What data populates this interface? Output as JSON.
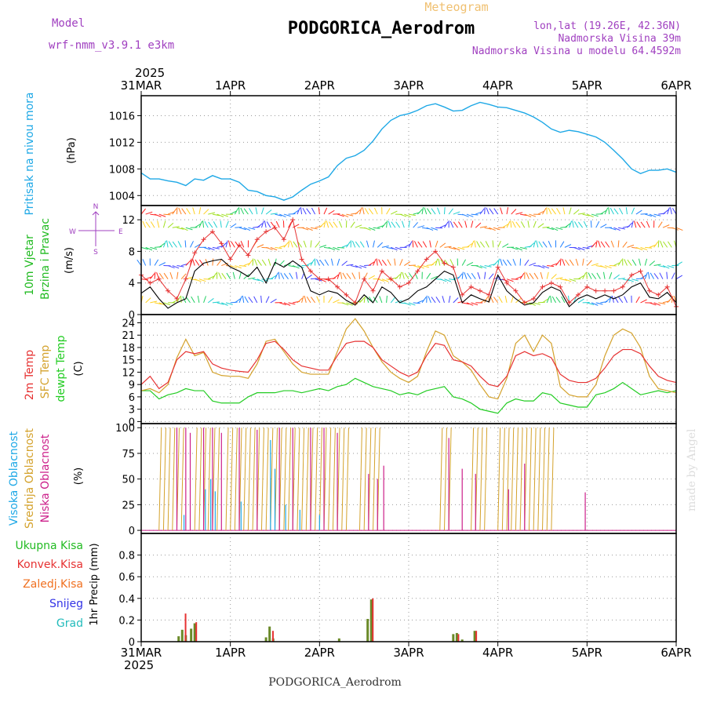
{
  "header": {
    "meteogram_label": "Meteogram",
    "station_title": "PODGORICA_Aerodrom",
    "model_label": "Model",
    "model_name": "wrf-nmm_v3.9.1 e3km",
    "lonlat": "lon,lat (19.26E, 42.36N)",
    "altitude": "Nadmorska Visina 39m",
    "model_altitude": "Nadmorska Visina u modelu 64.4592m",
    "footer_station": "PODGORICA_Aerodrom",
    "watermark": "made by Angel",
    "year_top": "2025",
    "year_bottom": "2025"
  },
  "time_axis": {
    "labels_top": [
      "31MAR",
      "1APR",
      "2APR",
      "3APR",
      "4APR",
      "5APR",
      "6APR"
    ],
    "labels_bottom": [
      "31MAR",
      "1APR",
      "2APR",
      "3APR",
      "4APR",
      "5APR",
      "6APR"
    ],
    "days": 6
  },
  "colors": {
    "pressure": "#1ea8e6",
    "wind_label": "#22bb22",
    "wind_gust": "#e63232",
    "temp_2m": "#e63232",
    "temp_sfc": "#d4a22c",
    "dewpoint": "#22cc22",
    "cloud_high": "#1ea8e6",
    "cloud_mid": "#d4a22c",
    "cloud_low": "#cc1f8a",
    "precip_total": "#22bb22",
    "precip_conv": "#e63232",
    "precip_frozen": "#f07020",
    "precip_snow": "#3232e6",
    "precip_grad": "#22bbbb",
    "purple": "#a040c0",
    "orange": "#f0c070"
  },
  "chart_data": [
    {
      "type": "line",
      "name": "pressure",
      "ylabel_main": "Pritisak na nivou mora",
      "ylabel_unit": "(hPa)",
      "ylim": [
        1002.5,
        1019
      ],
      "yticks": [
        1004,
        1008,
        1012,
        1016
      ],
      "x": [
        0,
        0.1,
        0.2,
        0.3,
        0.4,
        0.5,
        0.6,
        0.7,
        0.8,
        0.9,
        1.0,
        1.1,
        1.2,
        1.3,
        1.4,
        1.5,
        1.6,
        1.7,
        1.8,
        1.9,
        2.0,
        2.1,
        2.2,
        2.3,
        2.4,
        2.5,
        2.6,
        2.7,
        2.8,
        2.9,
        3.0,
        3.1,
        3.2,
        3.3,
        3.4,
        3.5,
        3.6,
        3.7,
        3.8,
        3.9,
        4.0,
        4.1,
        4.2,
        4.3,
        4.4,
        4.5,
        4.6,
        4.7,
        4.8,
        4.9,
        5.0,
        5.1,
        5.2,
        5.3,
        5.4,
        5.5,
        5.6,
        5.7,
        5.8,
        5.9,
        6.0
      ],
      "values": [
        1007.4,
        1006.5,
        1006.5,
        1006.2,
        1006.0,
        1005.5,
        1006.5,
        1006.3,
        1007.0,
        1006.5,
        1006.5,
        1006.0,
        1004.8,
        1004.6,
        1004.0,
        1003.8,
        1003.3,
        1003.8,
        1004.8,
        1005.7,
        1006.2,
        1006.8,
        1008.5,
        1009.6,
        1010.0,
        1010.8,
        1012.2,
        1014.0,
        1015.3,
        1016.0,
        1016.3,
        1016.8,
        1017.5,
        1017.8,
        1017.3,
        1016.7,
        1016.8,
        1017.5,
        1018.0,
        1017.7,
        1017.3,
        1017.2,
        1016.8,
        1016.4,
        1015.8,
        1015.0,
        1014.0,
        1013.5,
        1013.8,
        1013.6,
        1013.2,
        1012.8,
        1012.0,
        1010.8,
        1009.5,
        1008.0,
        1007.3,
        1007.8,
        1007.8,
        1008.0,
        1007.5
      ]
    },
    {
      "type": "line",
      "name": "wind",
      "ylabel_main": "10m Vjetar",
      "ylabel_sub": "Brzina i Pravac",
      "ylabel_unit": "(m/s)",
      "compass": {
        "n": "N",
        "s": "S",
        "e": "E",
        "w": "W"
      },
      "ylim": [
        0,
        13.8
      ],
      "yticks": [
        0,
        4,
        8,
        12
      ],
      "x": [
        0,
        0.1,
        0.2,
        0.3,
        0.4,
        0.5,
        0.6,
        0.7,
        0.8,
        0.9,
        1.0,
        1.1,
        1.2,
        1.3,
        1.4,
        1.5,
        1.6,
        1.7,
        1.8,
        1.9,
        2.0,
        2.1,
        2.2,
        2.3,
        2.4,
        2.5,
        2.6,
        2.7,
        2.8,
        2.9,
        3.0,
        3.1,
        3.2,
        3.3,
        3.4,
        3.5,
        3.6,
        3.7,
        3.8,
        3.9,
        4.0,
        4.1,
        4.2,
        4.3,
        4.4,
        4.5,
        4.6,
        4.7,
        4.8,
        4.9,
        5.0,
        5.1,
        5.2,
        5.3,
        5.4,
        5.5,
        5.6,
        5.7,
        5.8,
        5.9,
        6.0
      ],
      "speed": [
        2.7,
        3.5,
        2.0,
        0.8,
        1.5,
        2.0,
        5.5,
        6.5,
        6.8,
        7.0,
        6.0,
        5.5,
        4.8,
        6.0,
        4.0,
        6.6,
        6.0,
        6.8,
        6.0,
        3.0,
        2.5,
        3.0,
        2.7,
        1.8,
        1.2,
        2.5,
        1.5,
        3.5,
        2.8,
        1.5,
        2.0,
        3.0,
        3.5,
        4.5,
        5.5,
        5.0,
        1.5,
        2.5,
        2.0,
        1.6,
        5.0,
        3.0,
        2.0,
        1.2,
        1.5,
        2.8,
        3.5,
        3.0,
        1.0,
        2.0,
        2.5,
        2.0,
        2.5,
        2.0,
        2.5,
        3.5,
        4.0,
        2.2,
        2.0,
        2.8,
        1.5
      ],
      "gust": [
        5.0,
        4.0,
        4.5,
        3.0,
        2.0,
        4.5,
        7.8,
        9.5,
        10.5,
        9.0,
        7.0,
        8.8,
        7.5,
        9.5,
        10.5,
        11.0,
        9.5,
        12.0,
        7.0,
        5.5,
        4.5,
        4.5,
        3.5,
        2.5,
        1.5,
        4.5,
        3.0,
        5.5,
        4.5,
        3.5,
        4.0,
        5.5,
        7.0,
        8.0,
        6.5,
        6.0,
        2.5,
        3.5,
        3.0,
        2.5,
        6.0,
        4.0,
        3.0,
        1.5,
        2.0,
        3.5,
        4.0,
        3.5,
        1.5,
        2.5,
        3.5,
        3.0,
        3.0,
        3.0,
        3.5,
        5.0,
        5.5,
        3.0,
        2.5,
        3.5,
        1.0
      ]
    },
    {
      "type": "line",
      "name": "temperature",
      "ylabel_t2": "2m Temp",
      "ylabel_sfc": "SFC Temp",
      "ylabel_dew": "dewpt Temp",
      "ylabel_unit": "(C)",
      "ylim": [
        -0.5,
        26
      ],
      "yticks": [
        0,
        3,
        6,
        9,
        12,
        15,
        18,
        21,
        24
      ],
      "x": [
        0,
        0.1,
        0.2,
        0.3,
        0.4,
        0.5,
        0.6,
        0.7,
        0.8,
        0.9,
        1.0,
        1.1,
        1.2,
        1.3,
        1.4,
        1.5,
        1.6,
        1.7,
        1.8,
        1.9,
        2.0,
        2.1,
        2.2,
        2.3,
        2.4,
        2.5,
        2.6,
        2.7,
        2.8,
        2.9,
        3.0,
        3.1,
        3.2,
        3.3,
        3.4,
        3.5,
        3.6,
        3.7,
        3.8,
        3.9,
        4.0,
        4.1,
        4.2,
        4.3,
        4.4,
        4.5,
        4.6,
        4.7,
        4.8,
        4.9,
        5.0,
        5.1,
        5.2,
        5.3,
        5.4,
        5.5,
        5.6,
        5.7,
        5.8,
        5.9,
        6.0
      ],
      "t2m": [
        9.0,
        11.0,
        8.0,
        9.5,
        15.0,
        17.0,
        16.5,
        17.0,
        14.0,
        13.0,
        12.5,
        12.2,
        12.0,
        15.0,
        19.0,
        19.5,
        17.5,
        15.0,
        13.5,
        13.0,
        12.5,
        12.5,
        16.0,
        19.0,
        19.5,
        19.5,
        18.0,
        15.0,
        13.5,
        12.0,
        11.0,
        12.0,
        16.0,
        19.0,
        18.5,
        15.0,
        14.5,
        13.5,
        11.0,
        9.0,
        8.5,
        11.0,
        16.0,
        17.0,
        16.0,
        16.5,
        15.5,
        11.5,
        10.0,
        9.5,
        9.5,
        10.5,
        13.0,
        16.0,
        17.5,
        17.5,
        16.5,
        13.5,
        11.0,
        10.0,
        9.5
      ],
      "tsfc": [
        7.5,
        8.0,
        7.0,
        9.0,
        15.5,
        20.0,
        16.0,
        16.8,
        12.0,
        11.2,
        11.0,
        11.0,
        10.5,
        14.0,
        19.5,
        20.0,
        17.0,
        14.0,
        12.0,
        11.5,
        11.5,
        11.5,
        17.0,
        22.5,
        25.0,
        22.0,
        18.0,
        14.5,
        12.0,
        10.5,
        9.5,
        11.0,
        17.0,
        22.0,
        21.0,
        16.0,
        14.5,
        12.5,
        9.0,
        6.0,
        5.5,
        10.5,
        19.0,
        21.0,
        17.0,
        21.0,
        19.0,
        8.5,
        6.5,
        6.0,
        6.0,
        9.0,
        16.0,
        21.0,
        22.5,
        21.5,
        18.0,
        11.0,
        8.0,
        7.5,
        7.0
      ],
      "dewpt": [
        7.5,
        7.5,
        5.5,
        6.5,
        7.0,
        8.0,
        7.5,
        7.5,
        5.0,
        4.5,
        4.5,
        4.5,
        6.0,
        7.0,
        7.0,
        7.0,
        7.5,
        7.5,
        7.0,
        7.5,
        8.0,
        7.5,
        8.5,
        9.0,
        10.5,
        9.5,
        8.5,
        8.0,
        7.5,
        6.5,
        7.0,
        6.5,
        7.5,
        8.0,
        8.5,
        6.0,
        5.5,
        4.5,
        3.0,
        2.5,
        2.0,
        4.5,
        5.5,
        5.0,
        5.0,
        7.0,
        6.5,
        4.5,
        4.0,
        3.5,
        3.5,
        6.5,
        7.0,
        8.0,
        9.5,
        8.0,
        6.5,
        7.0,
        7.5,
        7.0,
        7.5
      ]
    },
    {
      "type": "bar",
      "name": "cloud_cover",
      "ylabel_high": "Visoka Oblacnost",
      "ylabel_mid": "Srednja Oblacnost",
      "ylabel_low": "Niska Oblacnost",
      "ylabel_unit": "(%)",
      "ylim": [
        -3,
        104
      ],
      "yticks": [
        0,
        25,
        50,
        75,
        100
      ],
      "hour_step": 0.05,
      "mid_runs": [
        [
          0.2,
          0.45
        ],
        [
          0.6,
          0.85
        ],
        [
          0.95,
          1.3
        ],
        [
          1.35,
          2.3
        ],
        [
          2.45,
          2.65
        ],
        [
          3.35,
          3.45
        ],
        [
          3.7,
          3.85
        ],
        [
          4.0,
          4.6
        ]
      ],
      "low_events": [
        [
          0.4,
          100
        ],
        [
          0.5,
          100
        ],
        [
          0.55,
          95
        ],
        [
          0.7,
          100
        ],
        [
          0.8,
          100
        ],
        [
          0.9,
          95
        ],
        [
          1.1,
          100
        ],
        [
          1.3,
          98
        ],
        [
          1.55,
          100
        ],
        [
          1.7,
          100
        ],
        [
          1.9,
          100
        ],
        [
          2.05,
          100
        ],
        [
          2.2,
          95
        ],
        [
          2.55,
          55
        ],
        [
          2.65,
          50
        ],
        [
          2.72,
          63
        ],
        [
          3.45,
          90
        ],
        [
          3.6,
          60
        ],
        [
          3.75,
          55
        ],
        [
          4.12,
          40
        ],
        [
          4.3,
          65
        ],
        [
          4.98,
          37
        ]
      ],
      "high_events": [
        [
          0.48,
          15
        ],
        [
          0.72,
          40
        ],
        [
          0.78,
          50
        ],
        [
          0.83,
          38
        ],
        [
          1.12,
          28
        ],
        [
          1.45,
          88
        ],
        [
          1.5,
          60
        ],
        [
          1.62,
          25
        ],
        [
          1.78,
          20
        ],
        [
          2.0,
          15
        ]
      ]
    },
    {
      "type": "bar",
      "name": "precipitation",
      "ylabel_total": "Ukupna Kisa",
      "ylabel_conv": "Konvek.Kisa",
      "ylabel_frozen": "Zaledj.Kisa",
      "ylabel_snow": "Snijeg",
      "ylabel_grad": "Grad",
      "ylabel_unit": "1hr Precip (mm)",
      "ylim": [
        0,
        1.0
      ],
      "yticks": [
        0,
        0.2,
        0.4,
        0.6,
        0.8
      ],
      "total": [
        [
          0.42,
          0.05
        ],
        [
          0.46,
          0.11
        ],
        [
          0.5,
          0.06
        ],
        [
          0.56,
          0.12
        ],
        [
          0.6,
          0.17
        ],
        [
          1.4,
          0.04
        ],
        [
          1.44,
          0.14
        ],
        [
          1.48,
          0.03
        ],
        [
          2.22,
          0.03
        ],
        [
          2.54,
          0.21
        ],
        [
          2.58,
          0.39
        ],
        [
          3.5,
          0.07
        ],
        [
          3.54,
          0.08
        ],
        [
          3.6,
          0.02
        ],
        [
          3.74,
          0.1
        ]
      ],
      "convective": [
        [
          0.48,
          0.26
        ],
        [
          0.6,
          0.18
        ],
        [
          1.46,
          0.1
        ],
        [
          2.58,
          0.4
        ],
        [
          3.54,
          0.07
        ],
        [
          3.74,
          0.1
        ]
      ]
    }
  ]
}
